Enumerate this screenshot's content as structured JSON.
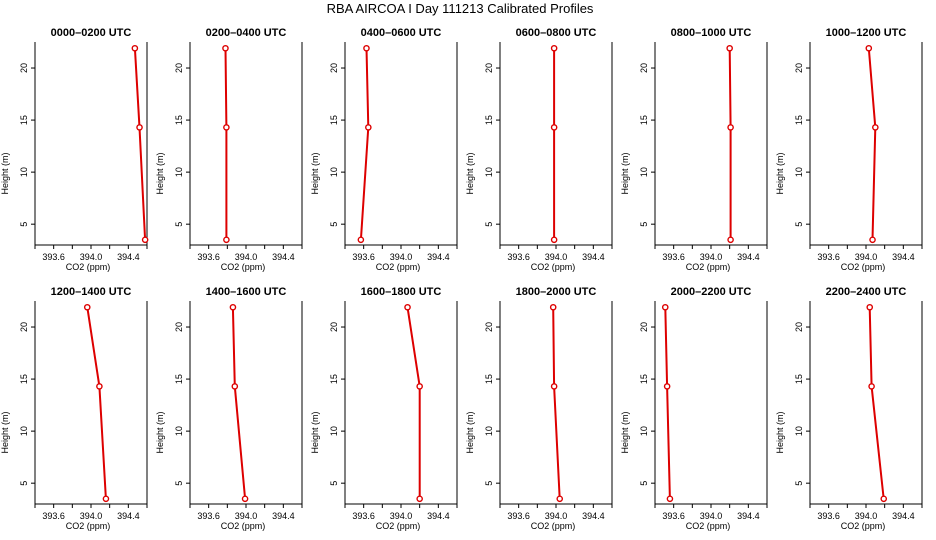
{
  "figure": {
    "title": "RBA AIRCOA I  Day 111213  Calibrated Profiles"
  },
  "colors": {
    "profile": "#dd0000",
    "axes": "#000000",
    "background": "#ffffff"
  },
  "chart_data": [
    {
      "type": "line",
      "title": "0000–0200 UTC",
      "xlabel": "CO2 (ppm)",
      "ylabel": "Height (m)",
      "xlim": [
        393.4,
        394.6
      ],
      "ylim": [
        3,
        22.5
      ],
      "xticks": [
        393.6,
        394.0,
        394.4
      ],
      "xtick_labels": [
        "393.6",
        "394.0",
        "394.4"
      ],
      "yticks": [
        5,
        10,
        15,
        20
      ],
      "ytick_labels": [
        "5",
        "10",
        "15",
        "20"
      ],
      "series": [
        {
          "x": [
            394.58,
            394.52,
            394.47
          ],
          "y": [
            3.5,
            14.3,
            21.9
          ]
        }
      ]
    },
    {
      "type": "line",
      "title": "0200–0400 UTC",
      "xlabel": "CO2 (ppm)",
      "ylabel": "Height (m)",
      "xlim": [
        393.4,
        394.6
      ],
      "ylim": [
        3,
        22.5
      ],
      "xticks": [
        393.6,
        394.0,
        394.4
      ],
      "xtick_labels": [
        "393.6",
        "394.0",
        "394.4"
      ],
      "yticks": [
        5,
        10,
        15,
        20
      ],
      "ytick_labels": [
        "5",
        "10",
        "15",
        "20"
      ],
      "series": [
        {
          "x": [
            393.79,
            393.79,
            393.78
          ],
          "y": [
            3.5,
            14.3,
            21.9
          ]
        }
      ]
    },
    {
      "type": "line",
      "title": "0400–0600 UTC",
      "xlabel": "CO2 (ppm)",
      "ylabel": "Height (m)",
      "xlim": [
        393.4,
        394.6
      ],
      "ylim": [
        3,
        22.5
      ],
      "xticks": [
        393.6,
        394.0,
        394.4
      ],
      "xtick_labels": [
        "393.6",
        "394.0",
        "394.4"
      ],
      "yticks": [
        5,
        10,
        15,
        20
      ],
      "ytick_labels": [
        "5",
        "10",
        "15",
        "20"
      ],
      "series": [
        {
          "x": [
            393.57,
            393.65,
            393.63
          ],
          "y": [
            3.5,
            14.3,
            21.9
          ]
        }
      ]
    },
    {
      "type": "line",
      "title": "0600–0800 UTC",
      "xlabel": "CO2 (ppm)",
      "ylabel": "Height (m)",
      "xlim": [
        393.4,
        394.6
      ],
      "ylim": [
        3,
        22.5
      ],
      "xticks": [
        393.6,
        394.0,
        394.4
      ],
      "xtick_labels": [
        "393.6",
        "394.0",
        "394.4"
      ],
      "yticks": [
        5,
        10,
        15,
        20
      ],
      "ytick_labels": [
        "5",
        "10",
        "15",
        "20"
      ],
      "series": [
        {
          "x": [
            393.98,
            393.98,
            393.98
          ],
          "y": [
            3.5,
            14.3,
            21.9
          ]
        }
      ]
    },
    {
      "type": "line",
      "title": "0800–1000 UTC",
      "xlabel": "CO2 (ppm)",
      "ylabel": "Height (m)",
      "xlim": [
        393.4,
        394.6
      ],
      "ylim": [
        3,
        22.5
      ],
      "xticks": [
        393.6,
        394.0,
        394.4
      ],
      "xtick_labels": [
        "393.6",
        "394.0",
        "394.4"
      ],
      "yticks": [
        5,
        10,
        15,
        20
      ],
      "ytick_labels": [
        "5",
        "10",
        "15",
        "20"
      ],
      "series": [
        {
          "x": [
            394.21,
            394.21,
            394.2
          ],
          "y": [
            3.5,
            14.3,
            21.9
          ]
        }
      ]
    },
    {
      "type": "line",
      "title": "1000–1200 UTC",
      "xlabel": "CO2 (ppm)",
      "ylabel": "Height (m)",
      "xlim": [
        393.4,
        394.6
      ],
      "ylim": [
        3,
        22.5
      ],
      "xticks": [
        393.6,
        394.0,
        394.4
      ],
      "xtick_labels": [
        "393.6",
        "394.0",
        "394.4"
      ],
      "yticks": [
        5,
        10,
        15,
        20
      ],
      "ytick_labels": [
        "5",
        "10",
        "15",
        "20"
      ],
      "series": [
        {
          "x": [
            394.07,
            394.1,
            394.03
          ],
          "y": [
            3.5,
            14.3,
            21.9
          ]
        }
      ]
    },
    {
      "type": "line",
      "title": "1200–1400 UTC",
      "xlabel": "CO2 (ppm)",
      "ylabel": "Height (m)",
      "xlim": [
        393.4,
        394.6
      ],
      "ylim": [
        3,
        22.5
      ],
      "xticks": [
        393.6,
        394.0,
        394.4
      ],
      "xtick_labels": [
        "393.6",
        "394.0",
        "394.4"
      ],
      "yticks": [
        5,
        10,
        15,
        20
      ],
      "ytick_labels": [
        "5",
        "10",
        "15",
        "20"
      ],
      "series": [
        {
          "x": [
            394.16,
            394.09,
            393.96
          ],
          "y": [
            3.5,
            14.3,
            21.9
          ]
        }
      ]
    },
    {
      "type": "line",
      "title": "1400–1600 UTC",
      "xlabel": "CO2 (ppm)",
      "ylabel": "Height (m)",
      "xlim": [
        393.4,
        394.6
      ],
      "ylim": [
        3,
        22.5
      ],
      "xticks": [
        393.6,
        394.0,
        394.4
      ],
      "xtick_labels": [
        "393.6",
        "394.0",
        "394.4"
      ],
      "yticks": [
        5,
        10,
        15,
        20
      ],
      "ytick_labels": [
        "5",
        "10",
        "15",
        "20"
      ],
      "series": [
        {
          "x": [
            393.99,
            393.88,
            393.86
          ],
          "y": [
            3.5,
            14.3,
            21.9
          ]
        }
      ]
    },
    {
      "type": "line",
      "title": "1600–1800 UTC",
      "xlabel": "CO2 (ppm)",
      "ylabel": "Height (m)",
      "xlim": [
        393.4,
        394.6
      ],
      "ylim": [
        3,
        22.5
      ],
      "xticks": [
        393.6,
        394.0,
        394.4
      ],
      "xtick_labels": [
        "393.6",
        "394.0",
        "394.4"
      ],
      "yticks": [
        5,
        10,
        15,
        20
      ],
      "ytick_labels": [
        "5",
        "10",
        "15",
        "20"
      ],
      "series": [
        {
          "x": [
            394.2,
            394.2,
            394.07
          ],
          "y": [
            3.5,
            14.3,
            21.9
          ]
        }
      ]
    },
    {
      "type": "line",
      "title": "1800–2000 UTC",
      "xlabel": "CO2 (ppm)",
      "ylabel": "Height (m)",
      "xlim": [
        393.4,
        394.6
      ],
      "ylim": [
        3,
        22.5
      ],
      "xticks": [
        393.6,
        394.0,
        394.4
      ],
      "xtick_labels": [
        "393.6",
        "394.0",
        "394.4"
      ],
      "yticks": [
        5,
        10,
        15,
        20
      ],
      "ytick_labels": [
        "5",
        "10",
        "15",
        "20"
      ],
      "series": [
        {
          "x": [
            394.04,
            393.98,
            393.97
          ],
          "y": [
            3.5,
            14.3,
            21.9
          ]
        }
      ]
    },
    {
      "type": "line",
      "title": "2000–2200 UTC",
      "xlabel": "CO2 (ppm)",
      "ylabel": "Height (m)",
      "xlim": [
        393.4,
        394.6
      ],
      "ylim": [
        3,
        22.5
      ],
      "xticks": [
        393.6,
        394.0,
        394.4
      ],
      "xtick_labels": [
        "393.6",
        "394.0",
        "394.4"
      ],
      "yticks": [
        5,
        10,
        15,
        20
      ],
      "ytick_labels": [
        "5",
        "10",
        "15",
        "20"
      ],
      "series": [
        {
          "x": [
            393.56,
            393.53,
            393.51
          ],
          "y": [
            3.5,
            14.3,
            21.9
          ]
        }
      ]
    },
    {
      "type": "line",
      "title": "2200–2400 UTC",
      "xlabel": "CO2 (ppm)",
      "ylabel": "Height (m)",
      "xlim": [
        393.4,
        394.6
      ],
      "ylim": [
        3,
        22.5
      ],
      "xticks": [
        393.6,
        394.0,
        394.4
      ],
      "xtick_labels": [
        "393.6",
        "394.0",
        "394.4"
      ],
      "yticks": [
        5,
        10,
        15,
        20
      ],
      "ytick_labels": [
        "5",
        "10",
        "15",
        "20"
      ],
      "series": [
        {
          "x": [
            394.19,
            394.06,
            394.04
          ],
          "y": [
            3.5,
            14.3,
            21.9
          ]
        }
      ]
    }
  ]
}
